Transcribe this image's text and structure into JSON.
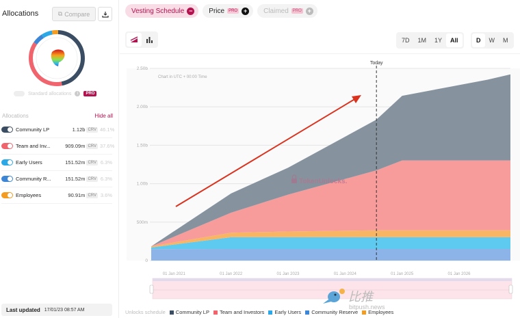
{
  "sidebar": {
    "title": "Allocations",
    "compare_label": "Compare",
    "standard_label": "Standard allocations",
    "pro_label": "PRO",
    "list_title": "Allocations",
    "hide_all": "Hide all",
    "items": [
      {
        "name": "Community LP",
        "amount": "1.12b",
        "token": "CRV",
        "pct": "46.1%",
        "color": "#3a4d63",
        "share": 46.1
      },
      {
        "name": "Team and Inv...",
        "amount": "909.09m",
        "token": "CRV",
        "pct": "37.6%",
        "color": "#f0646e",
        "share": 37.6
      },
      {
        "name": "Early Users",
        "amount": "151.52m",
        "token": "CRV",
        "pct": "6.3%",
        "color": "#2ca8e6",
        "share": 6.3
      },
      {
        "name": "Community R...",
        "amount": "151.52m",
        "token": "CRV",
        "pct": "6.3%",
        "color": "#3d86d6",
        "share": 6.3
      },
      {
        "name": "Employees",
        "amount": "90.91m",
        "token": "CRV",
        "pct": "3.6%",
        "color": "#f39c1f",
        "share": 3.6
      }
    ],
    "last_updated_label": "Last updated",
    "last_updated_value": "17/01/23 08:57 AM"
  },
  "tabs": [
    {
      "label": "Vesting Schedule",
      "icon": "minus-circle-icon"
    },
    {
      "label": "Price",
      "pro": "PRO",
      "icon": "plus-circle-icon"
    },
    {
      "label": "Claimed",
      "pro": "PRO",
      "icon": "plus-circle-icon"
    }
  ],
  "ranges": [
    "7D",
    "1M",
    "1Y",
    "All"
  ],
  "active_range": "All",
  "intervals": [
    "D",
    "W",
    "M"
  ],
  "active_interval": "D",
  "chart_data": {
    "type": "area",
    "stacked": true,
    "subtitle": "Chart in UTC + 00:00 Time",
    "today_label": "Today",
    "watermark": "TokenUnlocks.",
    "x": [
      2020.6,
      2022.0,
      2023.0,
      2024.55,
      2025.0,
      2026.5,
      2026.9
    ],
    "xticks": [
      "01 Jan 2021",
      "01 Jan 2022",
      "01 Jan 2023",
      "01 Jan 2024",
      "01 Jan 2025",
      "01 Jan 2026"
    ],
    "xtick_values": [
      2021,
      2022,
      2023,
      2024,
      2025,
      2026
    ],
    "xlim": [
      2020.6,
      2026.9
    ],
    "today_x": 2024.55,
    "yticks": [
      "0",
      "500m",
      "1.00b",
      "1.50b",
      "2.00b",
      "2.50b"
    ],
    "ytick_values": [
      0,
      500,
      1000,
      1500,
      2000,
      2500
    ],
    "ylim": [
      0,
      2500
    ],
    "unit": "millions CRV",
    "series": [
      {
        "name": "Community Reserve",
        "color": "#8db4e8",
        "values": [
          150,
          151.5,
          151.5,
          151.5,
          151.5,
          151.5,
          151.5
        ]
      },
      {
        "name": "Early Users",
        "color": "#5fcaf0",
        "values": [
          20,
          151.5,
          151.5,
          151.5,
          151.5,
          151.5,
          151.5
        ]
      },
      {
        "name": "Employees",
        "color": "#f8b665",
        "values": [
          15,
          60,
          75,
          90.9,
          90.9,
          90.9,
          90.9
        ]
      },
      {
        "name": "Team and Investors",
        "color": "#f79b9b",
        "values": [
          0,
          260,
          480,
          780,
          909,
          909,
          909
        ]
      },
      {
        "name": "Community LP",
        "color": "#86939f",
        "values": [
          0,
          250,
          350,
          660,
          840,
          1050,
          1120
        ]
      }
    ],
    "legend_title": "Unlocks schedule",
    "legend": [
      {
        "name": "Community LP",
        "color": "#3a4d63"
      },
      {
        "name": "Team and Investors",
        "color": "#f0646e"
      },
      {
        "name": "Early Users",
        "color": "#2ca8e6"
      },
      {
        "name": "Community Reserve",
        "color": "#3d86d6"
      },
      {
        "name": "Employees",
        "color": "#f39c1f"
      }
    ]
  },
  "watermark_site": {
    "cn": "比推",
    "url": "bitpush.news"
  }
}
